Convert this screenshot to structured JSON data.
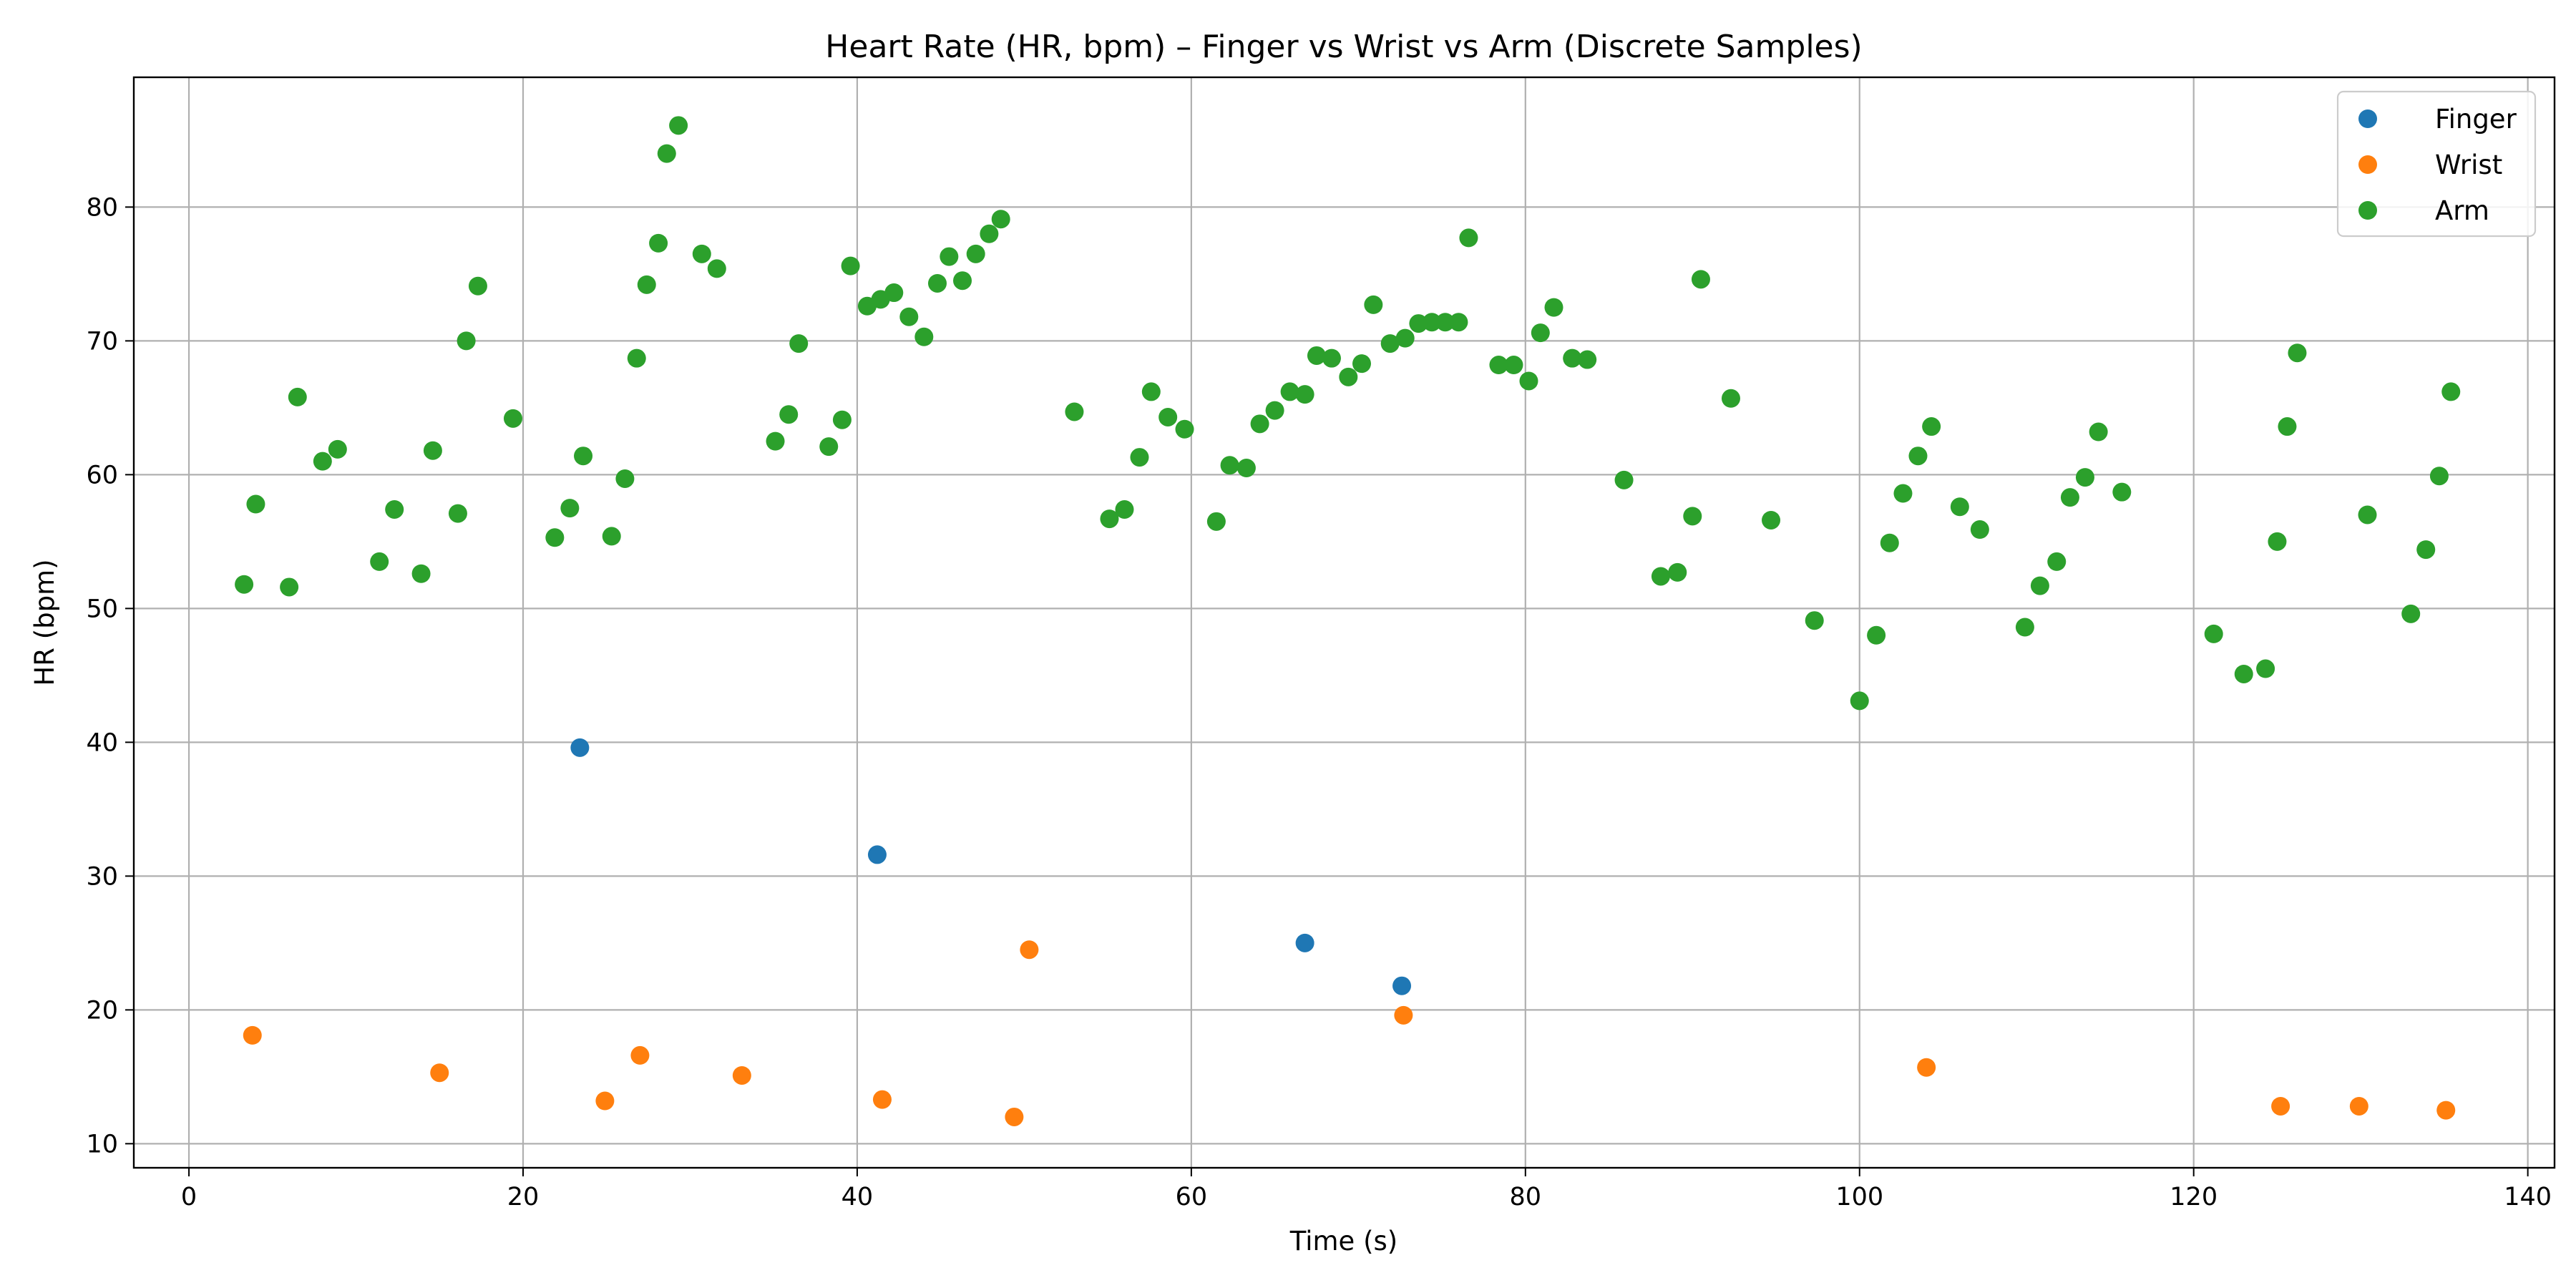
{
  "chart_data": {
    "type": "scatter",
    "title": "Heart Rate (HR, bpm) – Finger vs Wrist vs Arm (Discrete Samples)",
    "xlabel": "Time (s)",
    "ylabel": "HR (bpm)",
    "xlim": [
      -3.3,
      141.6
    ],
    "ylim": [
      8.2,
      89.7
    ],
    "xticks": [
      0,
      20,
      40,
      60,
      80,
      100,
      120,
      140
    ],
    "yticks": [
      10,
      20,
      30,
      40,
      50,
      60,
      70,
      80
    ],
    "grid": true,
    "legend_position": "top-right",
    "series": [
      {
        "name": "Finger",
        "color": "#1f77b4",
        "points": [
          [
            23.4,
            39.6
          ],
          [
            41.2,
            31.6
          ],
          [
            66.8,
            25.0
          ],
          [
            72.6,
            21.8
          ]
        ]
      },
      {
        "name": "Wrist",
        "color": "#ff7f0e",
        "points": [
          [
            3.8,
            18.1
          ],
          [
            15.0,
            15.3
          ],
          [
            24.9,
            13.2
          ],
          [
            27.0,
            16.6
          ],
          [
            33.1,
            15.1
          ],
          [
            41.5,
            13.3
          ],
          [
            49.4,
            12.0
          ],
          [
            50.3,
            24.5
          ],
          [
            72.7,
            19.6
          ],
          [
            104.0,
            15.7
          ],
          [
            125.2,
            12.8
          ],
          [
            129.9,
            12.8
          ],
          [
            135.1,
            12.5
          ]
        ]
      },
      {
        "name": "Arm",
        "color": "#2ca02c",
        "points": [
          [
            3.3,
            51.8
          ],
          [
            4.0,
            57.8
          ],
          [
            6.0,
            51.6
          ],
          [
            6.5,
            65.8
          ],
          [
            8.0,
            61.0
          ],
          [
            8.9,
            61.9
          ],
          [
            11.4,
            53.5
          ],
          [
            12.3,
            57.4
          ],
          [
            13.9,
            52.6
          ],
          [
            14.6,
            61.8
          ],
          [
            16.1,
            57.1
          ],
          [
            16.6,
            70.0
          ],
          [
            17.3,
            74.1
          ],
          [
            19.4,
            64.2
          ],
          [
            21.9,
            55.3
          ],
          [
            22.8,
            57.5
          ],
          [
            23.6,
            61.4
          ],
          [
            25.3,
            55.4
          ],
          [
            26.1,
            59.7
          ],
          [
            26.8,
            68.7
          ],
          [
            27.4,
            74.2
          ],
          [
            28.1,
            77.3
          ],
          [
            28.6,
            84.0
          ],
          [
            29.3,
            86.1
          ],
          [
            30.7,
            76.5
          ],
          [
            31.6,
            75.4
          ],
          [
            35.1,
            62.5
          ],
          [
            35.9,
            64.5
          ],
          [
            36.5,
            69.8
          ],
          [
            38.3,
            62.1
          ],
          [
            39.1,
            64.1
          ],
          [
            39.6,
            75.6
          ],
          [
            40.6,
            72.6
          ],
          [
            41.4,
            73.1
          ],
          [
            42.2,
            73.6
          ],
          [
            43.1,
            71.8
          ],
          [
            44.0,
            70.3
          ],
          [
            44.8,
            74.3
          ],
          [
            45.5,
            76.3
          ],
          [
            46.3,
            74.5
          ],
          [
            47.1,
            76.5
          ],
          [
            47.9,
            78.0
          ],
          [
            48.6,
            79.1
          ],
          [
            53.0,
            64.7
          ],
          [
            55.1,
            56.7
          ],
          [
            56.0,
            57.4
          ],
          [
            56.9,
            61.3
          ],
          [
            57.6,
            66.2
          ],
          [
            58.6,
            64.3
          ],
          [
            59.6,
            63.4
          ],
          [
            61.5,
            56.5
          ],
          [
            62.3,
            60.7
          ],
          [
            63.3,
            60.5
          ],
          [
            64.1,
            63.8
          ],
          [
            65.0,
            64.8
          ],
          [
            65.9,
            66.2
          ],
          [
            66.8,
            66.0
          ],
          [
            67.5,
            68.9
          ],
          [
            68.4,
            68.7
          ],
          [
            69.4,
            67.3
          ],
          [
            70.2,
            68.3
          ],
          [
            70.9,
            72.7
          ],
          [
            71.9,
            69.8
          ],
          [
            72.8,
            70.2
          ],
          [
            73.6,
            71.3
          ],
          [
            74.4,
            71.4
          ],
          [
            75.2,
            71.4
          ],
          [
            76.0,
            71.4
          ],
          [
            76.6,
            77.7
          ],
          [
            78.4,
            68.2
          ],
          [
            79.3,
            68.2
          ],
          [
            80.2,
            67.0
          ],
          [
            80.9,
            70.6
          ],
          [
            81.7,
            72.5
          ],
          [
            82.8,
            68.7
          ],
          [
            83.7,
            68.6
          ],
          [
            85.9,
            59.6
          ],
          [
            88.1,
            52.4
          ],
          [
            89.1,
            52.7
          ],
          [
            90.0,
            56.9
          ],
          [
            90.5,
            74.6
          ],
          [
            92.3,
            65.7
          ],
          [
            94.7,
            56.6
          ],
          [
            97.3,
            49.1
          ],
          [
            100.0,
            43.1
          ],
          [
            101.0,
            48.0
          ],
          [
            101.8,
            54.9
          ],
          [
            102.6,
            58.6
          ],
          [
            103.5,
            61.4
          ],
          [
            104.3,
            63.6
          ],
          [
            106.0,
            57.6
          ],
          [
            107.2,
            55.9
          ],
          [
            109.9,
            48.6
          ],
          [
            110.8,
            51.7
          ],
          [
            111.8,
            53.5
          ],
          [
            112.6,
            58.3
          ],
          [
            113.5,
            59.8
          ],
          [
            114.3,
            63.2
          ],
          [
            115.7,
            58.7
          ],
          [
            121.2,
            48.1
          ],
          [
            123.0,
            45.1
          ],
          [
            124.3,
            45.5
          ],
          [
            125.0,
            55.0
          ],
          [
            125.6,
            63.6
          ],
          [
            126.2,
            69.1
          ],
          [
            130.4,
            57.0
          ],
          [
            133.0,
            49.6
          ],
          [
            133.9,
            54.4
          ],
          [
            134.7,
            59.9
          ],
          [
            135.4,
            66.2
          ]
        ]
      }
    ]
  }
}
